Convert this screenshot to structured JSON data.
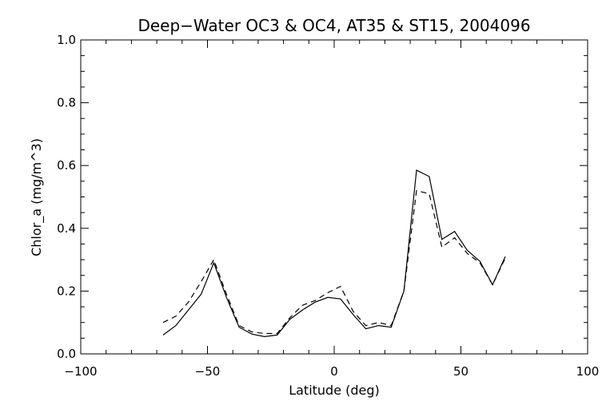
{
  "chart_data": {
    "type": "line",
    "title": "Deep−Water OC3 & OC4, AT35 & ST15, 2004096",
    "xlabel": "Latitude (deg)",
    "ylabel": "Chlor_a (mg/m^3)",
    "xlim": [
      -100,
      100
    ],
    "ylim": [
      0.0,
      1.0
    ],
    "x_ticks": [
      -100,
      -50,
      0,
      50,
      100
    ],
    "x_tick_labels": [
      "−100",
      "−50",
      "0",
      "50",
      "100"
    ],
    "y_ticks": [
      0.0,
      0.2,
      0.4,
      0.6,
      0.8,
      1.0
    ],
    "y_tick_labels": [
      "0.0",
      "0.2",
      "0.4",
      "0.6",
      "0.8",
      "1.0"
    ],
    "grid": false,
    "x": [
      -67.5,
      -62.5,
      -57.5,
      -52.5,
      -47.5,
      -42.5,
      -37.5,
      -32.5,
      -27.5,
      -22.5,
      -17.5,
      -12.5,
      -7.5,
      -2.5,
      2.5,
      7.5,
      12.5,
      17.5,
      22.5,
      27.5,
      32.5,
      37.5,
      42.5,
      47.5,
      52.5,
      57.5,
      62.5,
      67.5
    ],
    "series": [
      {
        "style": "solid",
        "color": "#000000",
        "values": [
          0.06,
          0.09,
          0.14,
          0.19,
          0.29,
          0.18,
          0.085,
          0.063,
          0.055,
          0.06,
          0.11,
          0.14,
          0.165,
          0.18,
          0.175,
          0.125,
          0.08,
          0.09,
          0.085,
          0.2,
          0.585,
          0.565,
          0.365,
          0.39,
          0.33,
          0.295,
          0.22,
          0.31
        ]
      },
      {
        "style": "dashed",
        "color": "#000000",
        "values": [
          0.1,
          0.12,
          0.165,
          0.23,
          0.3,
          0.19,
          0.09,
          0.07,
          0.065,
          0.065,
          0.115,
          0.155,
          0.17,
          0.195,
          0.215,
          0.135,
          0.09,
          0.1,
          0.09,
          0.2,
          0.52,
          0.51,
          0.34,
          0.37,
          0.32,
          0.29,
          0.22,
          0.305
        ]
      }
    ]
  }
}
